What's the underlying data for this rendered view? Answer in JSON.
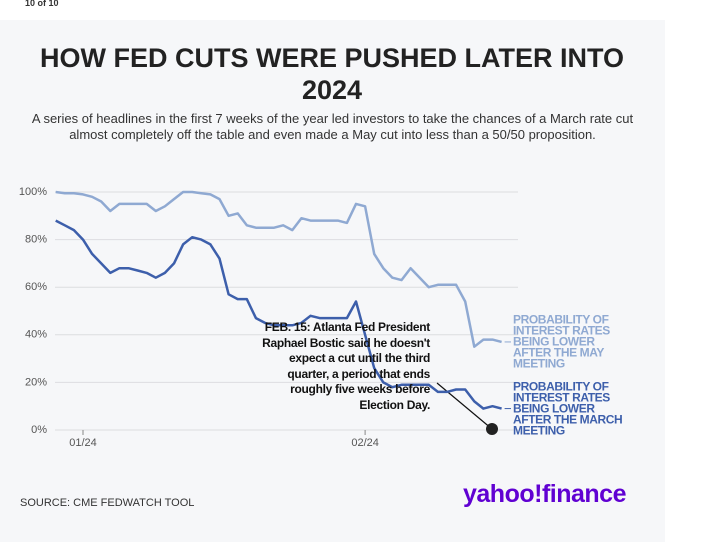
{
  "header": {
    "counter": "10 of 10"
  },
  "chart_data": {
    "type": "line",
    "title": "HOW FED CUTS WERE PUSHED LATER INTO 2024",
    "subtitle": "A series of headlines in the first 7 weeks of the year led investors to take the chances of a March rate cut almost completely off the table and even made a May cut into less than a 50/50 proposition.",
    "categories": [
      null,
      null,
      null,
      "01/24",
      null,
      null,
      null,
      null,
      null,
      null,
      null,
      null,
      null,
      null,
      null,
      null,
      null,
      null,
      null,
      null,
      null,
      null,
      null,
      null,
      null,
      null,
      null,
      null,
      null,
      null,
      null,
      null,
      null,
      null,
      "02/24",
      null,
      null,
      null,
      null,
      null,
      null,
      null,
      null,
      null,
      null,
      null,
      null,
      null,
      null,
      null
    ],
    "series": [
      {
        "name": "PROBABILITY OF INTEREST RATES BEING LOWER AFTER THE MAY MEETING",
        "color": "#8fa9d2",
        "values": [
          100,
          99.5,
          99.5,
          99,
          98,
          96,
          92,
          95,
          95,
          95,
          95,
          92,
          94,
          97,
          100,
          100,
          99.5,
          99,
          97,
          90,
          91,
          86,
          85,
          85,
          85,
          86,
          84,
          89,
          88,
          88,
          88,
          88,
          87,
          95,
          94,
          74,
          68,
          64,
          63,
          68,
          64,
          60,
          61,
          61,
          61,
          54,
          35,
          38,
          38,
          37
        ]
      },
      {
        "name": "PROBABILITY OF INTEREST RATES BEING LOWER AFTER THE MARCH MEETING",
        "color": "#3d5fab",
        "values": [
          88,
          86,
          84,
          80,
          74,
          70,
          66,
          68,
          68,
          67,
          66,
          64,
          66,
          70,
          78,
          81,
          80,
          78,
          72,
          57,
          55,
          55,
          47,
          45,
          44,
          44,
          44,
          45,
          48,
          47,
          47,
          47,
          47,
          54,
          40,
          26,
          20,
          18,
          19,
          19,
          19,
          19,
          16,
          16,
          17,
          17,
          12,
          9,
          10,
          9
        ]
      }
    ],
    "ylim": [
      0,
      100
    ],
    "yticks": [
      {
        "value": 0,
        "label": "0%"
      },
      {
        "value": 20,
        "label": "20%"
      },
      {
        "value": 40,
        "label": "40%"
      },
      {
        "value": 60,
        "label": "60%"
      },
      {
        "value": 80,
        "label": "80%"
      },
      {
        "value": 100,
        "label": "100%"
      }
    ],
    "grid": true,
    "annotations": [
      {
        "text": "FEB. 15: Atlanta Fed President Raphael Bostic said he doesn't expect a cut until the third quarter, a period that ends roughly five weeks before Election Day."
      }
    ],
    "source": "SOURCE: CME FEDWATCH TOOL",
    "brand": "yahoo!finance"
  }
}
